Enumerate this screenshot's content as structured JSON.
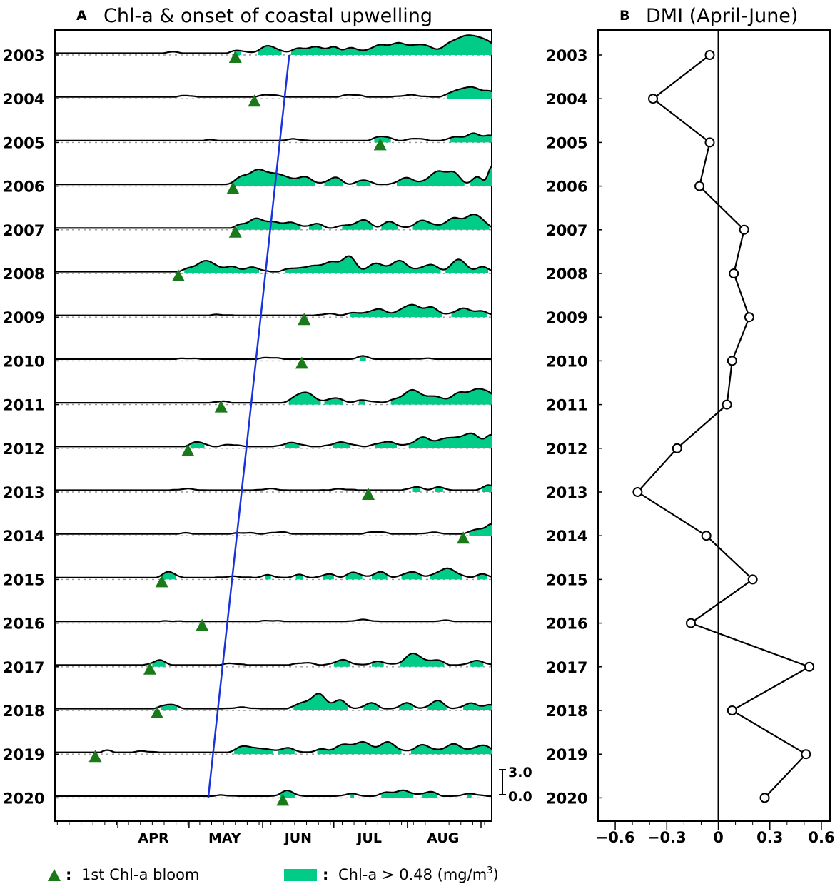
{
  "chart_data": [
    {
      "type": "area",
      "title": "Chl-a & onset of coastal upwelling",
      "panel_label": "A",
      "months": [
        "APR",
        "MAY",
        "JUN",
        "JUL",
        "AUG"
      ],
      "threshold": 0.48,
      "scale_bar_labels": [
        "3.0",
        "0.0"
      ],
      "area_color": "#00cc88",
      "bloom_marker_color": "#1a7a1a",
      "onset_line_color": "#1a33dd",
      "onset_line": {
        "start": {
          "year": "2003",
          "day_of_year": 150
        },
        "end": {
          "year": "2020",
          "day_of_year": 139
        }
      },
      "years": [
        {
          "year": "2003",
          "bloom_doy": 136,
          "peaks": [
            [
              110,
              0.35,
              3
            ],
            [
              137,
              0.5,
              4
            ],
            [
              150,
              1.2,
              5
            ],
            [
              162,
              0.6,
              4
            ],
            [
              170,
              1.0,
              6
            ],
            [
              178,
              0.8,
              3
            ],
            [
              185,
              0.9,
              4
            ],
            [
              196,
              1.1,
              5
            ],
            [
              205,
              1.5,
              6
            ],
            [
              215,
              1.3,
              5
            ],
            [
              228,
              1.6,
              6
            ],
            [
              236,
              2.4,
              6
            ],
            [
              243,
              1.2,
              4
            ]
          ]
        },
        {
          "year": "2004",
          "bloom_doy": 144,
          "peaks": [
            [
              115,
              0.3,
              4
            ],
            [
              150,
              0.4,
              6
            ],
            [
              185,
              0.4,
              6
            ],
            [
              210,
              0.4,
              6
            ],
            [
              228,
              0.8,
              4
            ],
            [
              235,
              1.5,
              5
            ],
            [
              243,
              0.9,
              4
            ]
          ]
        },
        {
          "year": "2005",
          "bloom_doy": 197,
          "peaks": [
            [
              125,
              0.2,
              5
            ],
            [
              160,
              0.3,
              6
            ],
            [
              198,
              0.7,
              5
            ],
            [
              212,
              0.4,
              5
            ],
            [
              228,
              0.6,
              4
            ],
            [
              236,
              1.1,
              4
            ],
            [
              243,
              0.8,
              4
            ]
          ]
        },
        {
          "year": "2006",
          "bloom_doy": 135,
          "peaks": [
            [
              138,
              0.8,
              4
            ],
            [
              146,
              2.2,
              6
            ],
            [
              155,
              1.3,
              5
            ],
            [
              165,
              1.2,
              5
            ],
            [
              178,
              1.1,
              4
            ],
            [
              190,
              0.7,
              4
            ],
            [
              208,
              1.0,
              5
            ],
            [
              221,
              1.9,
              5
            ],
            [
              228,
              1.6,
              4
            ],
            [
              238,
              1.2,
              3
            ],
            [
              244,
              2.6,
              2
            ]
          ]
        },
        {
          "year": "2007",
          "bloom_doy": 136,
          "peaks": [
            [
              138,
              0.4,
              3
            ],
            [
              145,
              1.5,
              5
            ],
            [
              153,
              0.8,
              4
            ],
            [
              160,
              0.9,
              4
            ],
            [
              170,
              0.7,
              4
            ],
            [
              182,
              0.5,
              4
            ],
            [
              190,
              1.3,
              4
            ],
            [
              201,
              1.0,
              4
            ],
            [
              215,
              1.2,
              5
            ],
            [
              228,
              1.5,
              5
            ],
            [
              237,
              2.0,
              5
            ]
          ]
        },
        {
          "year": "2008",
          "bloom_doy": 112,
          "peaks": [
            [
              117,
              0.5,
              4
            ],
            [
              124,
              1.7,
              5
            ],
            [
              134,
              0.8,
              4
            ],
            [
              143,
              0.7,
              5
            ],
            [
              160,
              0.6,
              5
            ],
            [
              168,
              0.8,
              4
            ],
            [
              176,
              1.5,
              5
            ],
            [
              184,
              2.2,
              4
            ],
            [
              195,
              1.3,
              4
            ],
            [
              205,
              1.7,
              5
            ],
            [
              218,
              1.1,
              5
            ],
            [
              230,
              1.9,
              4
            ],
            [
              240,
              0.8,
              4
            ]
          ]
        },
        {
          "year": "2009",
          "bloom_doy": 165,
          "peaks": [
            [
              130,
              0.2,
              6
            ],
            [
              175,
              0.3,
              5
            ],
            [
              186,
              0.5,
              4
            ],
            [
              196,
              1.0,
              5
            ],
            [
              210,
              1.6,
              6
            ],
            [
              219,
              1.1,
              4
            ],
            [
              232,
              1.1,
              5
            ],
            [
              240,
              0.6,
              4
            ]
          ]
        },
        {
          "year": "2010",
          "bloom_doy": 164,
          "peaks": [
            [
              115,
              0.2,
              6
            ],
            [
              150,
              0.3,
              6
            ],
            [
              190,
              0.5,
              4
            ],
            [
              215,
              0.2,
              6
            ]
          ]
        },
        {
          "year": "2011",
          "bloom_doy": 130,
          "peaks": [
            [
              130,
              0.3,
              4
            ],
            [
              165,
              1.6,
              6
            ],
            [
              178,
              0.8,
              4
            ],
            [
              190,
              0.5,
              5
            ],
            [
              204,
              0.5,
              5
            ],
            [
              211,
              1.9,
              5
            ],
            [
              220,
              1.0,
              4
            ],
            [
              230,
              1.4,
              5
            ],
            [
              238,
              1.8,
              5
            ],
            [
              243,
              1.0,
              4
            ]
          ]
        },
        {
          "year": "2012",
          "bloom_doy": 116,
          "peaks": [
            [
              120,
              0.8,
              4
            ],
            [
              134,
              0.4,
              5
            ],
            [
              160,
              0.6,
              6
            ],
            [
              181,
              0.7,
              6
            ],
            [
              200,
              0.8,
              6
            ],
            [
              215,
              1.4,
              5
            ],
            [
              225,
              1.2,
              5
            ],
            [
              235,
              2.0,
              6
            ],
            [
              244,
              1.5,
              3
            ]
          ]
        },
        {
          "year": "2013",
          "bloom_doy": 192,
          "peaks": [
            [
              115,
              0.3,
              6
            ],
            [
              150,
              0.3,
              6
            ],
            [
              180,
              0.3,
              6
            ],
            [
              212,
              0.6,
              4
            ],
            [
              222,
              0.5,
              4
            ],
            [
              243,
              0.8,
              4
            ]
          ]
        },
        {
          "year": "2014",
          "bloom_doy": 232,
          "peaks": [
            [
              115,
              0.2,
              5
            ],
            [
              140,
              0.3,
              6
            ],
            [
              155,
              0.4,
              5
            ],
            [
              195,
              0.4,
              6
            ],
            [
              220,
              0.3,
              6
            ],
            [
              238,
              0.8,
              4
            ],
            [
              244,
              1.5,
              3
            ]
          ]
        },
        {
          "year": "2015",
          "bloom_doy": 105,
          "peaks": [
            [
              108,
              0.9,
              4
            ],
            [
              135,
              0.3,
              6
            ],
            [
              150,
              0.5,
              4
            ],
            [
              163,
              0.5,
              4
            ],
            [
              175,
              0.6,
              4
            ],
            [
              186,
              0.9,
              4
            ],
            [
              197,
              0.9,
              4
            ],
            [
              210,
              0.9,
              5
            ],
            [
              225,
              1.4,
              6
            ],
            [
              240,
              0.6,
              4
            ]
          ]
        },
        {
          "year": "2016",
          "bloom_doy": 122,
          "peaks": [
            [
              110,
              0.15,
              6
            ],
            [
              150,
              0.2,
              6
            ],
            [
              190,
              0.3,
              6
            ],
            [
              225,
              0.2,
              6
            ]
          ]
        },
        {
          "year": "2017",
          "bloom_doy": 100,
          "peaks": [
            [
              104,
              0.8,
              4
            ],
            [
              135,
              0.3,
              6
            ],
            [
              165,
              0.4,
              6
            ],
            [
              181,
              0.8,
              5
            ],
            [
              196,
              0.6,
              5
            ],
            [
              211,
              1.8,
              5
            ],
            [
              221,
              0.8,
              4
            ],
            [
              238,
              0.7,
              5
            ]
          ]
        },
        {
          "year": "2018",
          "bloom_doy": 103,
          "peaks": [
            [
              108,
              0.7,
              5
            ],
            [
              138,
              0.3,
              6
            ],
            [
              164,
              0.9,
              4
            ],
            [
              171,
              2.3,
              4
            ],
            [
              180,
              1.3,
              4
            ],
            [
              193,
              0.9,
              4
            ],
            [
              208,
              0.9,
              4
            ],
            [
              221,
              1.3,
              4
            ],
            [
              235,
              0.9,
              4
            ],
            [
              243,
              0.6,
              4
            ]
          ]
        },
        {
          "year": "2019",
          "bloom_doy": 77,
          "peaks": [
            [
              82,
              0.4,
              3
            ],
            [
              97,
              0.3,
              5
            ],
            [
              140,
              1.0,
              5
            ],
            [
              148,
              0.6,
              4
            ],
            [
              158,
              0.7,
              5
            ],
            [
              172,
              0.5,
              4
            ],
            [
              182,
              1.3,
              5
            ],
            [
              190,
              1.5,
              4
            ],
            [
              200,
              1.6,
              5
            ],
            [
              215,
              1.2,
              5
            ],
            [
              228,
              1.3,
              5
            ],
            [
              240,
              1.1,
              5
            ]
          ]
        },
        {
          "year": "2020",
          "bloom_doy": 156,
          "peaks": [
            [
              130,
              0.2,
              6
            ],
            [
              158,
              0.9,
              4
            ],
            [
              185,
              0.4,
              5
            ],
            [
              199,
              0.5,
              4
            ],
            [
              207,
              0.9,
              5
            ],
            [
              218,
              0.7,
              4
            ],
            [
              235,
              0.4,
              6
            ]
          ]
        }
      ]
    },
    {
      "type": "line",
      "title": "DMI (April-June)",
      "panel_label": "B",
      "categories": [
        "2003",
        "2004",
        "2005",
        "2006",
        "2007",
        "2008",
        "2009",
        "2010",
        "2011",
        "2012",
        "2013",
        "2014",
        "2015",
        "2016",
        "2017",
        "2018",
        "2019",
        "2020"
      ],
      "values": [
        -0.05,
        -0.38,
        -0.05,
        -0.11,
        0.15,
        0.09,
        0.18,
        0.08,
        0.05,
        -0.24,
        -0.47,
        -0.07,
        0.2,
        -0.16,
        0.53,
        0.08,
        0.51,
        0.27
      ],
      "xlim": [
        -0.7,
        0.65
      ],
      "xticks": [
        -0.6,
        -0.3,
        0,
        0.3,
        0.6
      ],
      "xtick_labels": [
        "−0.6",
        "−0.3",
        "0",
        "0.3",
        "0.6"
      ]
    }
  ],
  "legend": {
    "bloom_label": "1st Chl-a bloom",
    "area_label_main": "Chl-a > 0.48 (mg/m",
    "area_label_sup": "3",
    "area_label_end": ")",
    "colon": ":"
  }
}
